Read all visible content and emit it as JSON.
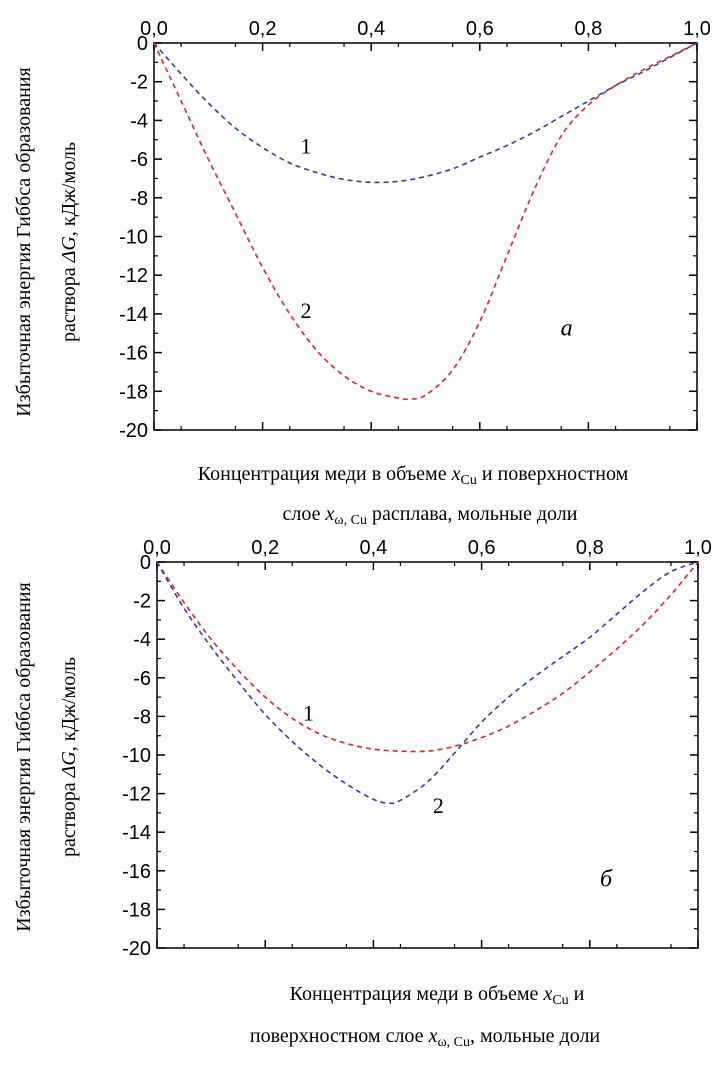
{
  "colors": {
    "series_blue": "#2b3fb0",
    "series_red": "#e8202a",
    "axis": "#000000"
  },
  "chart_data": [
    {
      "type": "line",
      "panel": "a",
      "line_style": "dashed",
      "xlim": [
        0,
        1
      ],
      "ylim": [
        -20,
        0
      ],
      "x_ticks": [
        "0,0",
        "0,2",
        "0,4",
        "0,6",
        "0,8",
        "1,0"
      ],
      "y_ticks": [
        "0",
        "-2",
        "-4",
        "-6",
        "-8",
        "-10",
        "-12",
        "-14",
        "-16",
        "-18",
        "-20"
      ],
      "x_axis_position": "top",
      "grid": false,
      "ylabel_line1": "Избыточная энергия Гиббса образования",
      "ylabel_line2_pre": "раствора ",
      "ylabel_line2_var": "ΔG",
      "ylabel_line2_post": ", кДж/моль",
      "xlabel_line1_pre": "Концентрация меди в объеме ",
      "xlabel_line1_var": "x",
      "xlabel_line1_sub": "Cu",
      "xlabel_line1_post": " и поверхностном",
      "xlabel_line2_pre": "слое ",
      "xlabel_line2_var": "x",
      "xlabel_line2_sub": "ω, Cu",
      "xlabel_line2_post": " расплава, мольные доли",
      "panel_label": "а",
      "series": [
        {
          "label": "1",
          "color": "#2b3fb0",
          "x": [
            0,
            0.05,
            0.1,
            0.15,
            0.2,
            0.25,
            0.3,
            0.35,
            0.4,
            0.45,
            0.5,
            0.55,
            0.6,
            0.65,
            0.7,
            0.75,
            0.8,
            0.85,
            0.9,
            0.95,
            1.0
          ],
          "y": [
            0,
            -1.6,
            -3.1,
            -4.4,
            -5.4,
            -6.2,
            -6.7,
            -7.05,
            -7.2,
            -7.15,
            -6.9,
            -6.5,
            -5.9,
            -5.3,
            -4.6,
            -3.8,
            -3.0,
            -2.2,
            -1.5,
            -0.75,
            0
          ]
        },
        {
          "label": "2",
          "color": "#e8202a",
          "x": [
            0,
            0.05,
            0.1,
            0.15,
            0.2,
            0.25,
            0.3,
            0.35,
            0.4,
            0.45,
            0.47,
            0.5,
            0.55,
            0.6,
            0.65,
            0.7,
            0.75,
            0.8,
            0.85,
            0.9,
            0.95,
            1.0
          ],
          "y": [
            0,
            -3.0,
            -6.0,
            -8.8,
            -11.6,
            -14.0,
            -15.9,
            -17.2,
            -18.0,
            -18.35,
            -18.4,
            -18.2,
            -16.9,
            -14.4,
            -11.0,
            -7.6,
            -4.8,
            -3.2,
            -2.2,
            -1.4,
            -0.7,
            0
          ]
        }
      ],
      "series_label_positions": [
        {
          "label": "1",
          "x": 0.28,
          "y": -5.3
        },
        {
          "label": "2",
          "x": 0.28,
          "y": -13.8
        }
      ],
      "panel_label_position": {
        "x": 0.76,
        "y": -14.7
      }
    },
    {
      "type": "line",
      "panel": "b",
      "line_style": "dashed",
      "xlim": [
        0,
        1
      ],
      "ylim": [
        -20,
        0
      ],
      "x_ticks": [
        "0,0",
        "0,2",
        "0,4",
        "0,6",
        "0,8",
        "1,0"
      ],
      "y_ticks": [
        "0",
        "-2",
        "-4",
        "-6",
        "-8",
        "-10",
        "-12",
        "-14",
        "-16",
        "-18",
        "-20"
      ],
      "x_axis_position": "top",
      "grid": false,
      "ylabel_line1": "Избыточная энергия Гиббса образования",
      "ylabel_line2_pre": "раствора ",
      "ylabel_line2_var": "ΔG",
      "ylabel_line2_post": ", кДж/моль",
      "xlabel_line1_pre": "Концентрация меди в объеме ",
      "xlabel_line1_var": "x",
      "xlabel_line1_sub": "Cu",
      "xlabel_line1_post": " и",
      "xlabel_line2_pre": "поверхностном слое ",
      "xlabel_line2_var": "x",
      "xlabel_line2_sub": "ω, Cu",
      "xlabel_line2_post": ", мольные доли",
      "panel_label": "б",
      "series": [
        {
          "label": "1",
          "color": "#e8202a",
          "x": [
            0,
            0.05,
            0.1,
            0.15,
            0.2,
            0.25,
            0.3,
            0.35,
            0.4,
            0.45,
            0.5,
            0.55,
            0.6,
            0.65,
            0.7,
            0.75,
            0.8,
            0.85,
            0.9,
            0.95,
            1.0
          ],
          "y": [
            0,
            -2.1,
            -4.0,
            -5.6,
            -7.0,
            -8.1,
            -8.9,
            -9.4,
            -9.7,
            -9.8,
            -9.8,
            -9.55,
            -9.1,
            -8.5,
            -7.7,
            -6.8,
            -5.7,
            -4.5,
            -3.2,
            -1.7,
            0
          ]
        },
        {
          "label": "2",
          "color": "#2b3fb0",
          "x": [
            0,
            0.05,
            0.1,
            0.15,
            0.2,
            0.25,
            0.3,
            0.35,
            0.4,
            0.43,
            0.45,
            0.5,
            0.55,
            0.6,
            0.65,
            0.7,
            0.75,
            0.8,
            0.85,
            0.9,
            0.95,
            1.0
          ],
          "y": [
            0,
            -2.4,
            -4.4,
            -6.2,
            -7.9,
            -9.3,
            -10.5,
            -11.5,
            -12.3,
            -12.5,
            -12.35,
            -11.4,
            -9.9,
            -8.3,
            -7.0,
            -5.9,
            -4.9,
            -3.9,
            -2.7,
            -1.5,
            -0.5,
            0
          ]
        }
      ],
      "series_label_positions": [
        {
          "label": "1",
          "x": 0.28,
          "y": -7.8
        },
        {
          "label": "2",
          "x": 0.52,
          "y": -12.6
        }
      ],
      "panel_label_position": {
        "x": 0.83,
        "y": -16.4
      }
    }
  ]
}
